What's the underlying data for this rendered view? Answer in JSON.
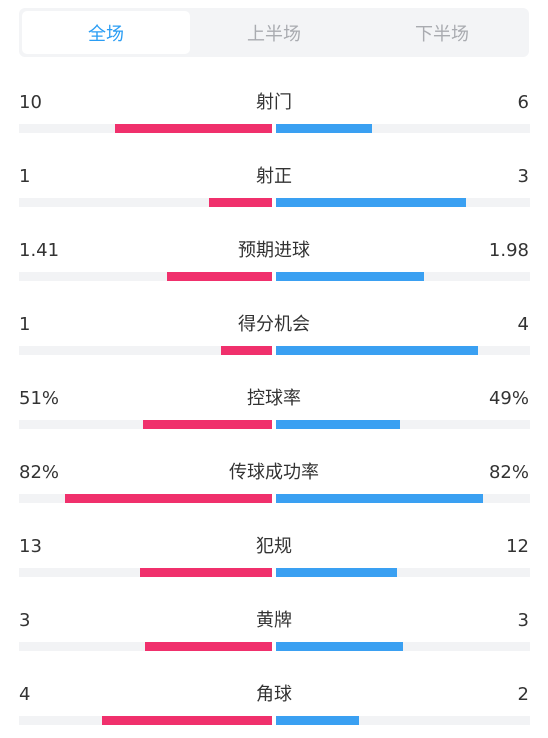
{
  "tabs": [
    {
      "label": "全场",
      "active": true
    },
    {
      "label": "上半场",
      "active": false
    },
    {
      "label": "下半场",
      "active": false
    }
  ],
  "colors": {
    "home": "#f0306c",
    "away": "#3aa0f2",
    "track": "#f2f3f5",
    "active_tab_text": "#2a9df4"
  },
  "stats": [
    {
      "label": "射门",
      "home": "10",
      "away": "6",
      "home_fill": 0.62,
      "away_fill": 0.38
    },
    {
      "label": "射正",
      "home": "1",
      "away": "3",
      "home_fill": 0.25,
      "away_fill": 0.75
    },
    {
      "label": "预期进球",
      "home": "1.41",
      "away": "1.98",
      "home_fill": 0.415,
      "away_fill": 0.585
    },
    {
      "label": "得分机会",
      "home": "1",
      "away": "4",
      "home_fill": 0.2,
      "away_fill": 0.8
    },
    {
      "label": "控球率",
      "home": "51%",
      "away": "49%",
      "home_fill": 0.51,
      "away_fill": 0.49
    },
    {
      "label": "传球成功率",
      "home": "82%",
      "away": "82%",
      "home_fill": 0.82,
      "away_fill": 0.82
    },
    {
      "label": "犯规",
      "home": "13",
      "away": "12",
      "home_fill": 0.52,
      "away_fill": 0.48
    },
    {
      "label": "黄牌",
      "home": "3",
      "away": "3",
      "home_fill": 0.5,
      "away_fill": 0.5
    },
    {
      "label": "角球",
      "home": "4",
      "away": "2",
      "home_fill": 0.67,
      "away_fill": 0.33
    }
  ]
}
